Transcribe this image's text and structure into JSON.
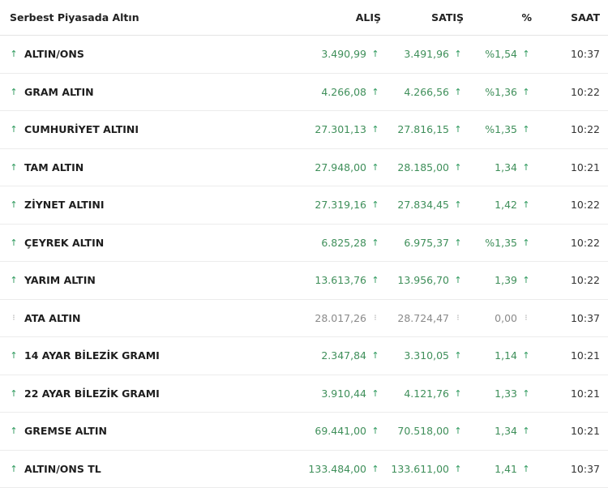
{
  "header": {
    "name": "Serbest Piyasada Altın",
    "alis": "ALIŞ",
    "satis": "SATIŞ",
    "pct": "%",
    "saat": "SAAT"
  },
  "colors": {
    "up": "#3f8f5a",
    "flat": "#8a8a8a"
  },
  "icons": {
    "up": "arrow-up-icon",
    "flat": "dots-icon"
  },
  "rows": [
    {
      "trend": "up",
      "name": "ALTIN/ONS",
      "alis": "3.490,99",
      "satis": "3.491,96",
      "pct": "%1,54",
      "saat": "10:37"
    },
    {
      "trend": "up",
      "name": "GRAM ALTIN",
      "alis": "4.266,08",
      "satis": "4.266,56",
      "pct": "%1,36",
      "saat": "10:22"
    },
    {
      "trend": "up",
      "name": "CUMHURİYET ALTINI",
      "alis": "27.301,13",
      "satis": "27.816,15",
      "pct": "%1,35",
      "saat": "10:22"
    },
    {
      "trend": "up",
      "name": "TAM ALTIN",
      "alis": "27.948,00",
      "satis": "28.185,00",
      "pct": "1,34",
      "saat": "10:21"
    },
    {
      "trend": "up",
      "name": "ZİYNET ALTINI",
      "alis": "27.319,16",
      "satis": "27.834,45",
      "pct": "1,42",
      "saat": "10:22"
    },
    {
      "trend": "up",
      "name": "ÇEYREK ALTIN",
      "alis": "6.825,28",
      "satis": "6.975,37",
      "pct": "%1,35",
      "saat": "10:22"
    },
    {
      "trend": "up",
      "name": "YARIM ALTIN",
      "alis": "13.613,76",
      "satis": "13.956,70",
      "pct": "1,39",
      "saat": "10:22"
    },
    {
      "trend": "flat",
      "name": "ATA ALTIN",
      "alis": "28.017,26",
      "satis": "28.724,47",
      "pct": "0,00",
      "saat": "10:37"
    },
    {
      "trend": "up",
      "name": "14 AYAR BİLEZİK GRAMI",
      "alis": "2.347,84",
      "satis": "3.310,05",
      "pct": "1,14",
      "saat": "10:21"
    },
    {
      "trend": "up",
      "name": "22 AYAR BİLEZİK GRAMI",
      "alis": "3.910,44",
      "satis": "4.121,76",
      "pct": "1,33",
      "saat": "10:21"
    },
    {
      "trend": "up",
      "name": "GREMSE ALTIN",
      "alis": "69.441,00",
      "satis": "70.518,00",
      "pct": "1,34",
      "saat": "10:21"
    },
    {
      "trend": "up",
      "name": "ALTIN/ONS TL",
      "alis": "133.484,00",
      "satis": "133.611,00",
      "pct": "1,41",
      "saat": "10:37"
    }
  ]
}
